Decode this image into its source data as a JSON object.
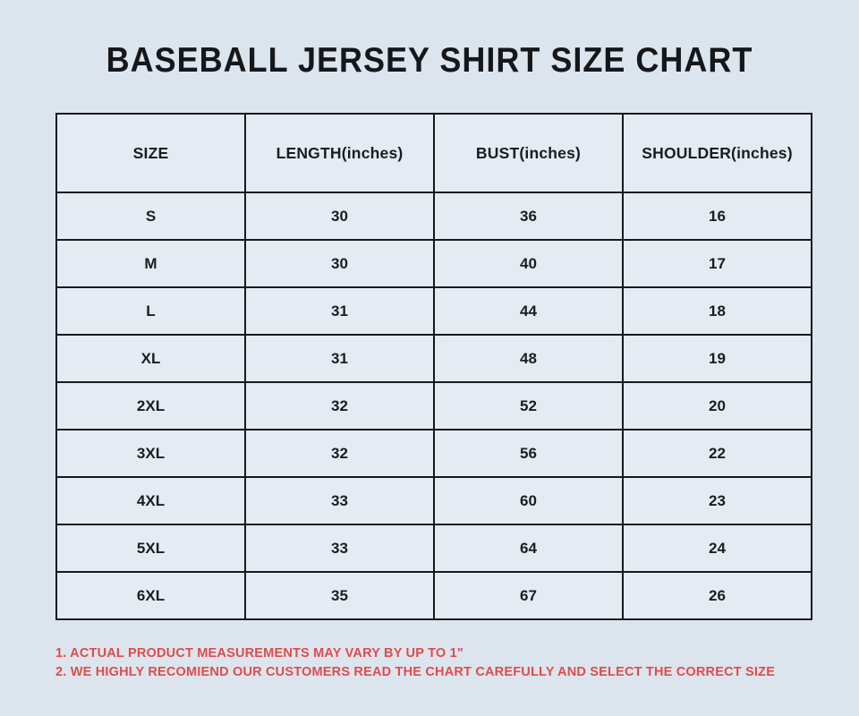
{
  "title": "BASEBALL JERSEY SHIRT SIZE CHART",
  "colors": {
    "page_background": "#dce5ee",
    "cell_background": "#e4ebf2",
    "table_border": "#17191c",
    "text": "#1b1d20",
    "note_red": "#e14b4b"
  },
  "chart_data": {
    "type": "table",
    "title": "BASEBALL JERSEY SHIRT SIZE CHART",
    "columns": [
      "SIZE",
      "LENGTH(inches)",
      "BUST(inches)",
      "SHOULDER(inches)"
    ],
    "rows": [
      [
        "S",
        "30",
        "36",
        "16"
      ],
      [
        "M",
        "30",
        "40",
        "17"
      ],
      [
        "L",
        "31",
        "44",
        "18"
      ],
      [
        "XL",
        "31",
        "48",
        "19"
      ],
      [
        "2XL",
        "32",
        "52",
        "20"
      ],
      [
        "3XL",
        "32",
        "56",
        "22"
      ],
      [
        "4XL",
        "33",
        "60",
        "23"
      ],
      [
        "5XL",
        "33",
        "64",
        "24"
      ],
      [
        "6XL",
        "35",
        "67",
        "26"
      ]
    ],
    "layout_hints": {
      "columns_equal_width": true,
      "all_cells_centered": true,
      "grid": true
    }
  },
  "notes": [
    "1. ACTUAL PRODUCT MEASUREMENTS MAY VARY BY UP TO 1\"",
    "2. WE HIGHLY RECOMIEND OUR CUSTOMERS READ THE CHART CAREFULLY AND SELECT THE CORRECT SIZE"
  ]
}
